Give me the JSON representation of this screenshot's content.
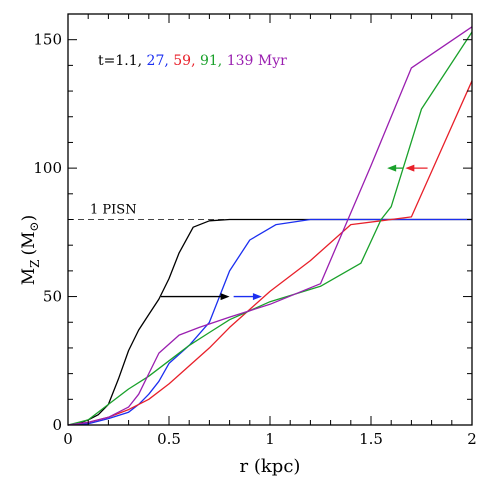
{
  "chart_data": {
    "type": "line",
    "xlabel": "r (kpc)",
    "ylabel": "M",
    "ylabel_sub": "Z",
    "ylabel_unit": "(M",
    "ylabel_unit_close": ")",
    "xlim": [
      0,
      2
    ],
    "ylim": [
      0,
      160
    ],
    "x_ticks": [
      0,
      0.5,
      1,
      1.5,
      2
    ],
    "x_tick_labels": [
      "0",
      "0.5",
      "1",
      "1.5",
      "2"
    ],
    "y_ticks": [
      0,
      50,
      100,
      150
    ],
    "y_tick_labels": [
      "0",
      "50",
      "100",
      "150"
    ],
    "legend": {
      "prefix": "t=1.1,",
      "entries": [
        "27,",
        "59,",
        "91,",
        "139 Myr"
      ]
    },
    "reference_line": {
      "y": 80,
      "label": "1 PISN"
    },
    "series": [
      {
        "color": "#000000",
        "x": [
          0,
          0.05,
          0.1,
          0.15,
          0.2,
          0.25,
          0.3,
          0.35,
          0.4,
          0.45,
          0.5,
          0.55,
          0.62,
          0.7,
          0.8,
          1.0,
          1.2,
          1.5,
          1.8,
          2.0
        ],
        "y": [
          0,
          0.5,
          2,
          4,
          8,
          18,
          29,
          37,
          43,
          49,
          57,
          67,
          77,
          79.5,
          80,
          80,
          80,
          80,
          80,
          80
        ]
      },
      {
        "color": "#1b2ff0",
        "x": [
          0,
          0.1,
          0.2,
          0.3,
          0.35,
          0.4,
          0.45,
          0.5,
          0.6,
          0.7,
          0.8,
          0.9,
          1.03,
          1.2,
          1.4,
          1.6,
          1.7,
          2.0
        ],
        "y": [
          0,
          0.5,
          2.5,
          5,
          8,
          12,
          17,
          24,
          31,
          40,
          60,
          72,
          78,
          80,
          80,
          80,
          80,
          80
        ]
      },
      {
        "color": "#e8202a",
        "x": [
          0,
          0.1,
          0.2,
          0.3,
          0.4,
          0.5,
          0.6,
          0.7,
          0.8,
          0.9,
          1.0,
          1.2,
          1.4,
          1.6,
          1.7,
          2.0
        ],
        "y": [
          0,
          1,
          3,
          6,
          10,
          16,
          23,
          30,
          38,
          45,
          52,
          64,
          78,
          80,
          81,
          134
        ]
      },
      {
        "color": "#1aa12b",
        "x": [
          0,
          0.1,
          0.2,
          0.3,
          0.4,
          0.5,
          0.6,
          0.7,
          0.8,
          1.0,
          1.25,
          1.45,
          1.55,
          1.6,
          1.75,
          2.0
        ],
        "y": [
          0,
          2,
          8,
          14,
          19,
          25,
          31,
          36,
          41,
          48,
          54,
          63,
          80,
          85,
          123,
          153
        ]
      },
      {
        "color": "#9a1fb0",
        "x": [
          0,
          0.1,
          0.2,
          0.3,
          0.35,
          0.4,
          0.45,
          0.55,
          0.65,
          0.8,
          1.0,
          1.25,
          1.5,
          1.7,
          2.0
        ],
        "y": [
          0,
          1,
          3,
          7,
          12,
          20,
          28,
          35,
          38,
          42,
          47,
          55,
          101,
          139,
          155
        ]
      }
    ],
    "annotations": [
      {
        "type": "arrow",
        "color": "#000000",
        "from": [
          0.46,
          50
        ],
        "to": [
          0.8,
          50
        ]
      },
      {
        "type": "arrow",
        "color": "#1b2ff0",
        "from": [
          0.82,
          50
        ],
        "to": [
          0.96,
          50
        ]
      },
      {
        "type": "arrow",
        "color": "#1aa12b",
        "from": [
          1.66,
          100
        ],
        "to": [
          1.58,
          100
        ]
      },
      {
        "type": "arrow",
        "color": "#e8202a",
        "from": [
          1.78,
          100
        ],
        "to": [
          1.67,
          100
        ]
      }
    ]
  }
}
